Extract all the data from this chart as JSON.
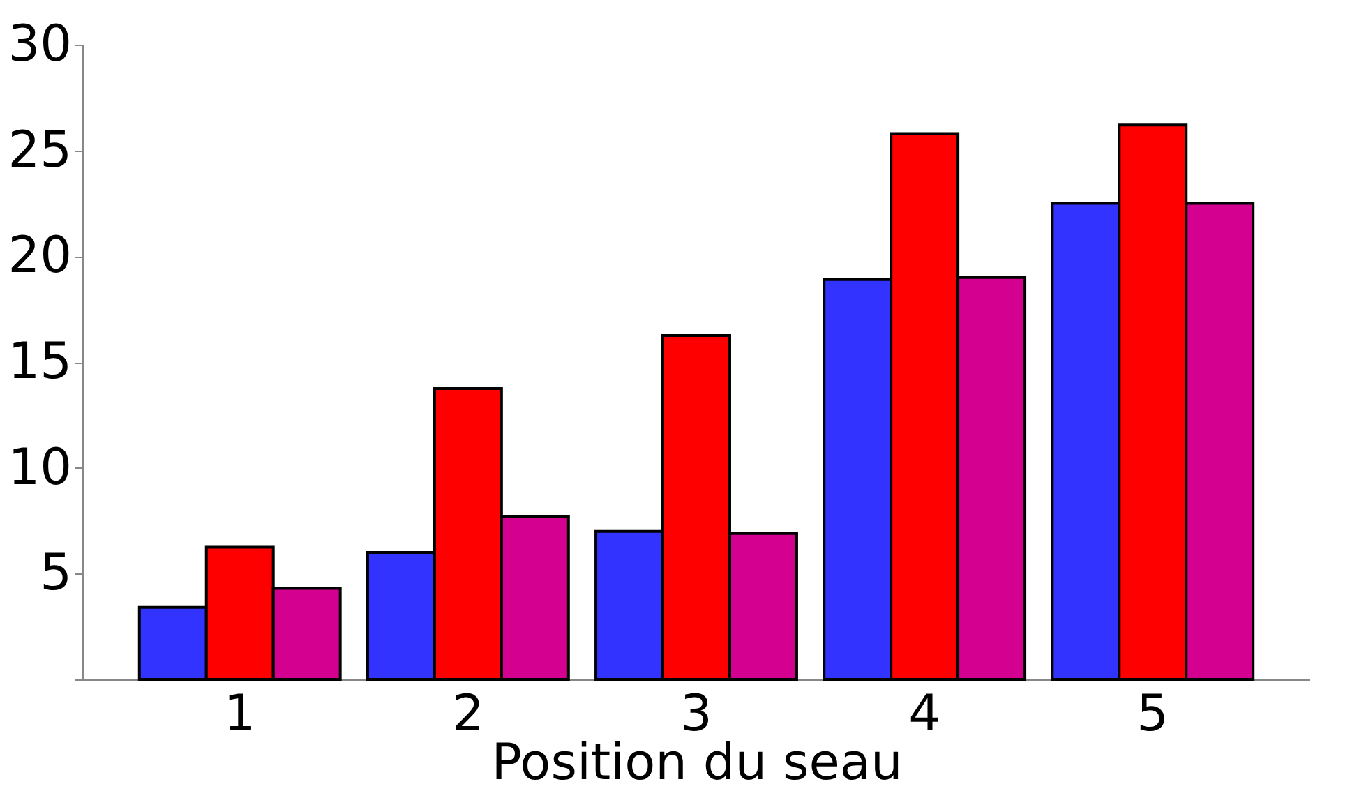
{
  "chart_data": {
    "type": "bar",
    "xlabel": "Position du seau",
    "categories": [
      "1",
      "2",
      "3",
      "4",
      "5"
    ],
    "series": [
      {
        "color": "#3333ff",
        "values": [
          3.4,
          6.0,
          7.0,
          18.9,
          22.5
        ]
      },
      {
        "color": "#ff0000",
        "values": [
          6.25,
          13.75,
          16.25,
          25.8,
          26.2
        ]
      },
      {
        "color": "#d4008f",
        "values": [
          4.3,
          7.7,
          6.9,
          19.0,
          22.5
        ]
      }
    ],
    "ylim": [
      0,
      30
    ],
    "yticks": [
      {
        "value": 0,
        "label": null
      },
      5,
      10,
      15,
      20,
      25,
      30
    ],
    "grid": false,
    "legend": false
  }
}
